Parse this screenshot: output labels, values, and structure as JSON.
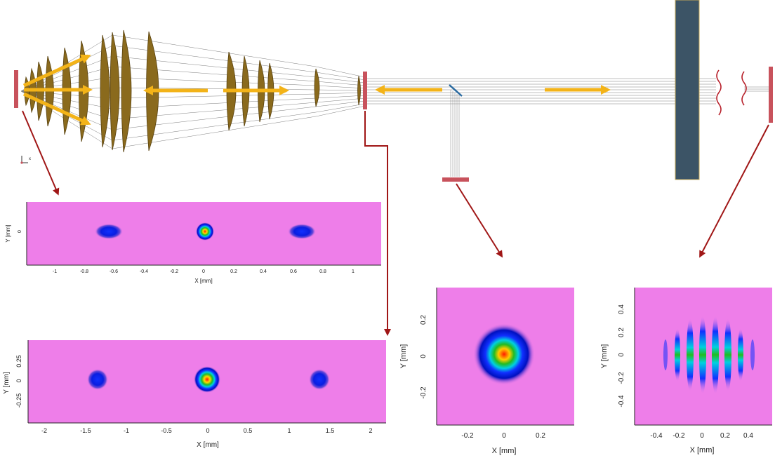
{
  "colors": {
    "background_plot": "#ee7ee9",
    "lens_fill": "#8a6a1d",
    "arrow": "#f3b318",
    "detector": "#c8525c",
    "link_arrow": "#a01616",
    "slab": "#3c5466",
    "ray": "#555555"
  },
  "axis_icon": {
    "label": "x"
  },
  "plots": {
    "top_left": {
      "xlabel": "X [mm]",
      "ylabel": "Y [mm]",
      "xticks": [
        "-1",
        "-0.8",
        "-0.6",
        "-0.4",
        "-0.2",
        "0",
        "0.2",
        "0.4",
        "0.6",
        "0.8",
        "1"
      ],
      "yticks": [
        "0"
      ]
    },
    "bottom_left": {
      "xlabel": "X [mm]",
      "ylabel": "Y [mm]",
      "xticks": [
        "-2",
        "-1.5",
        "-1",
        "-0.5",
        "0",
        "0.5",
        "1",
        "1.5",
        "2"
      ],
      "yticks": [
        "0.25",
        "0",
        "-0.25"
      ]
    },
    "middle": {
      "xlabel": "X [mm]",
      "ylabel": "Y [mm]",
      "xticks": [
        "-0.2",
        "0",
        "0.2"
      ],
      "yticks": [
        "0.2",
        "0",
        "-0.2"
      ]
    },
    "right": {
      "xlabel": "X [mm]",
      "ylabel": "Y [mm]",
      "xticks": [
        "-0.4",
        "-0.2",
        "0",
        "0.2",
        "0.4"
      ],
      "yticks": [
        "0.4",
        "0.2",
        "0",
        "-0.2",
        "-0.4"
      ]
    }
  }
}
